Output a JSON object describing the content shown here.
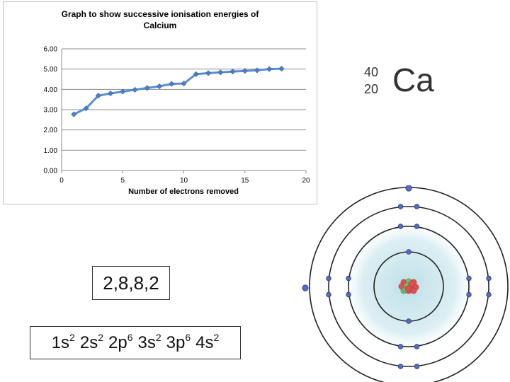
{
  "chart_data": {
    "type": "line",
    "title": "Graph to show successive ionisation energies of Calcium",
    "title_line1": "Graph to show successive ionisation energies of",
    "title_line2": "Calcium",
    "xlabel": "Number of electrons removed",
    "ylabel": "",
    "xlim": [
      0,
      20
    ],
    "ylim": [
      0,
      6
    ],
    "x_ticks": [
      0,
      5,
      10,
      15,
      20
    ],
    "x_tick_labels": [
      "0",
      "5",
      "10",
      "15",
      "20"
    ],
    "y_ticks": [
      0,
      1,
      2,
      3,
      4,
      5,
      6
    ],
    "y_tick_labels": [
      "0.00",
      "1.00",
      "2.00",
      "3.00",
      "4.00",
      "5.00",
      "6.00"
    ],
    "grid": "horizontal",
    "legend": "none",
    "series": [
      {
        "color": "#5b8fd1",
        "x": [
          1,
          2,
          3,
          4,
          5,
          6,
          7,
          8,
          9,
          10,
          11,
          12,
          13,
          14,
          15,
          16,
          17,
          18
        ],
        "y": [
          2.77,
          3.06,
          3.69,
          3.8,
          3.89,
          3.98,
          4.07,
          4.15,
          4.27,
          4.29,
          4.75,
          4.8,
          4.84,
          4.88,
          4.91,
          4.94,
          5.0,
          5.02
        ]
      }
    ]
  },
  "element": {
    "mass_number": "40",
    "atomic_number": "20",
    "symbol": "Ca"
  },
  "shell_configuration": "2,8,8,2",
  "orbital_configuration": [
    {
      "orbital": "1s",
      "electrons": "2"
    },
    {
      "orbital": "2s",
      "electrons": "2"
    },
    {
      "orbital": "2p",
      "electrons": "6"
    },
    {
      "orbital": "3s",
      "electrons": "2"
    },
    {
      "orbital": "3p",
      "electrons": "6"
    },
    {
      "orbital": "4s",
      "electrons": "2"
    }
  ],
  "atom_model": {
    "shell_electron_counts": [
      2,
      8,
      8,
      2
    ],
    "electron_color": "#5a6cc0",
    "proton_color": "#e05050",
    "neutron_color": "#6fbf6f",
    "glow_color": "#bfe0e8"
  }
}
